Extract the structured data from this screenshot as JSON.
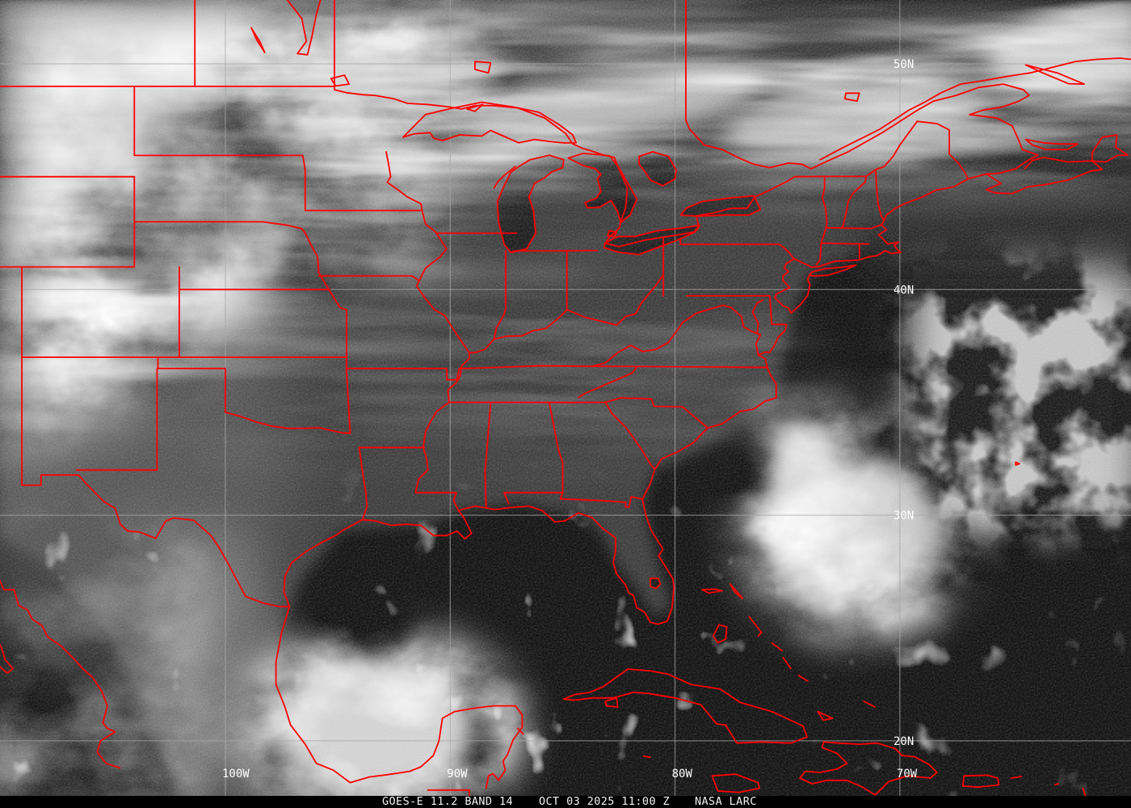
{
  "map": {
    "graticule": {
      "latitude_labels": [
        {
          "label": "50N",
          "lat": 50
        },
        {
          "label": "40N",
          "lat": 40
        },
        {
          "label": "30N",
          "lat": 30
        },
        {
          "label": "20N",
          "lat": 20
        }
      ],
      "longitude_labels": [
        {
          "label": "100W",
          "lon": -100
        },
        {
          "label": "90W",
          "lon": -90
        },
        {
          "label": "80W",
          "lon": -80
        },
        {
          "label": "70W",
          "lon": -70
        }
      ]
    },
    "colors": {
      "border_red": "#ff0000",
      "gridline": "#a8a8a8",
      "label_text": "#ffffff",
      "caption_background": "#000000",
      "caption_text": "#f2f2f2"
    }
  },
  "caption": {
    "product": "GOES-E 11.2 BAND 14",
    "timestamp": "OCT 03 2025 11:00 Z",
    "credit": "NASA LARC"
  }
}
